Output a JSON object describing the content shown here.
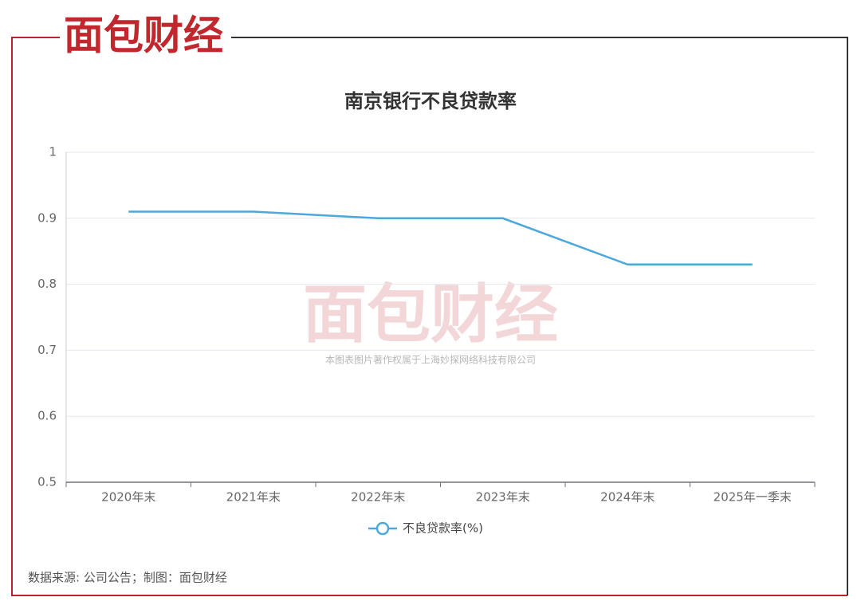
{
  "chart_data": {
    "type": "line",
    "title": "南京银行不良贷款率",
    "logo": "面包财经",
    "watermark": "本图表图片著作权属于上海妙探网络科技有限公司",
    "source": "数据来源: 公司公告；制图：面包财经",
    "categories": [
      "2020年末",
      "2021年末",
      "2022年末",
      "2023年末",
      "2024年末",
      "2025年一季末"
    ],
    "series": [
      {
        "name": "不良贷款率(%)",
        "color": "#4aa8dc",
        "values": [
          0.91,
          0.91,
          0.9,
          0.9,
          0.83,
          0.83
        ]
      }
    ],
    "ylim": [
      0.5,
      1
    ],
    "yticks": [
      0.5,
      0.6,
      0.7,
      0.8,
      0.9,
      1
    ],
    "grid": true
  }
}
